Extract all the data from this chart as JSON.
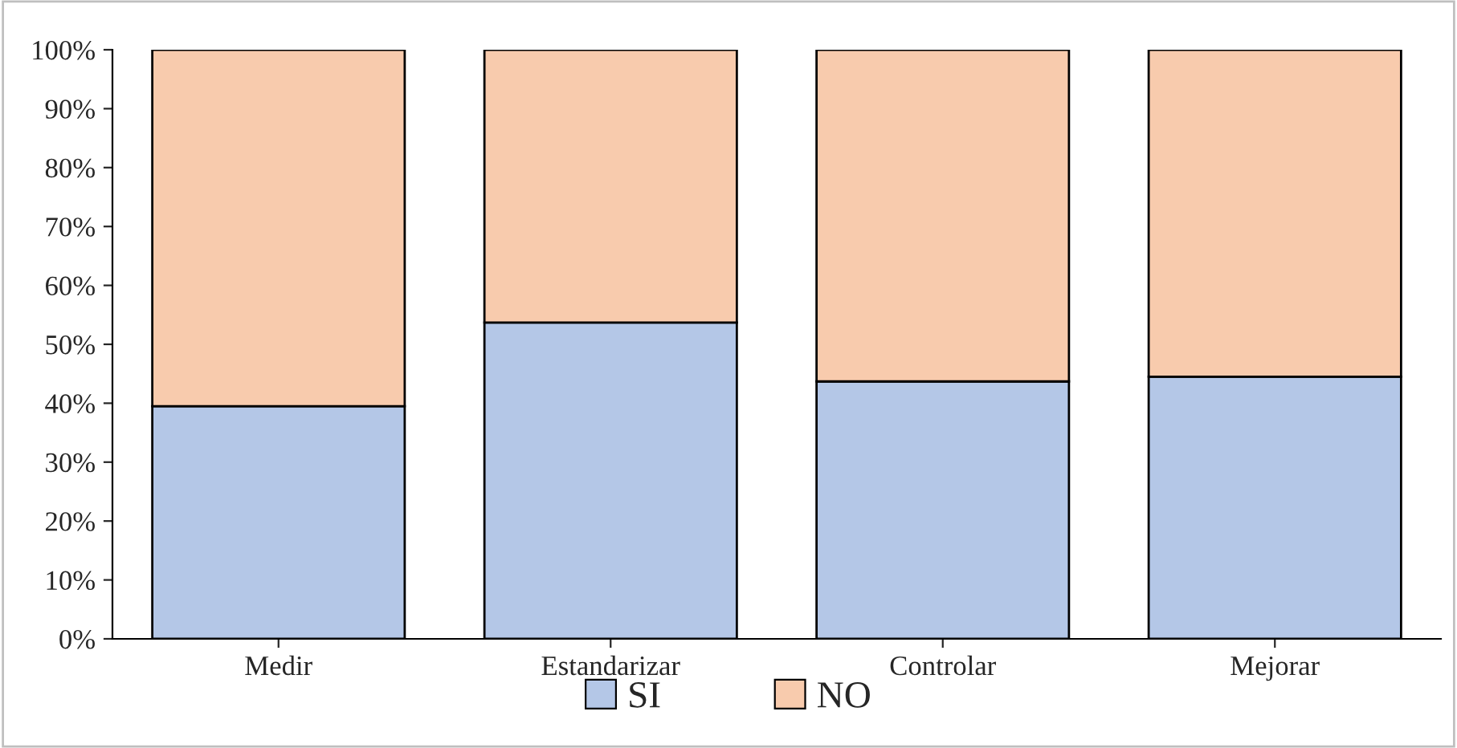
{
  "chart_data": {
    "type": "bar",
    "stacked": true,
    "categories": [
      "Medir",
      "Estandarizar",
      "Controlar",
      "Mejorar"
    ],
    "series": [
      {
        "name": "SI",
        "color": "#b4c7e7",
        "values": [
          39.5,
          53.7,
          43.7,
          44.5
        ]
      },
      {
        "name": "NO",
        "color": "#f8cbad",
        "values": [
          60.5,
          46.3,
          56.3,
          55.5
        ]
      }
    ],
    "ylim": [
      0,
      100
    ],
    "yticks": [
      {
        "value": 0,
        "label": "0%"
      },
      {
        "value": 10,
        "label": "10%"
      },
      {
        "value": 20,
        "label": "20%"
      },
      {
        "value": 30,
        "label": "30%"
      },
      {
        "value": 40,
        "label": "40%"
      },
      {
        "value": 50,
        "label": "50%"
      },
      {
        "value": 60,
        "label": "60%"
      },
      {
        "value": 70,
        "label": "70%"
      },
      {
        "value": 80,
        "label": "80%"
      },
      {
        "value": 90,
        "label": "90%"
      },
      {
        "value": 100,
        "label": "100%"
      }
    ],
    "grid": false,
    "legend": "bottom"
  }
}
